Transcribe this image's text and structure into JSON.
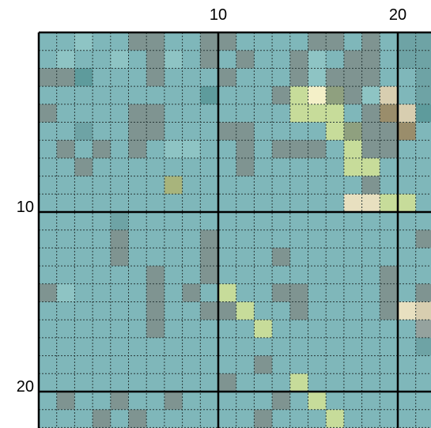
{
  "board": {
    "columns_visible": 22,
    "rows_visible": 22,
    "major_line_every": 10,
    "col_labels": [
      {
        "index": 10,
        "text": "10"
      },
      {
        "index": 20,
        "text": "20"
      }
    ],
    "row_labels": [
      {
        "index": 10,
        "text": "10"
      },
      {
        "index": 20,
        "text": "20"
      }
    ],
    "palette": {
      "a": "#7fb7ba",
      "b": "#6ea3a5",
      "c": "#8ec4c4",
      "d": "#5e9b9c",
      "e": "#7f9491",
      "f": "#95a29e",
      "g": "#c7dc9a",
      "h": "#e8e0c0",
      "i": "#a8b47c",
      "j": "#9a8d6b",
      "k": "#f4f0c8",
      "l": "#d8ceb0",
      "m": "#8fa07f"
    },
    "rows": [
      "aacaaeeaaeeaaaaeeaeabb",
      "acaacaecaeaeaaecaeeabb",
      "eedaaaeaaaeaaaeceeeaab",
      "aaaaaaaaadaaaegkmeclab",
      "eaaaaeeaaaaaaagggaejld",
      "aabaaeeaaaeeaaaagmeeja",
      "aeaeaeaccaaeaeeeageeaa",
      "aaeaaaaaaaaeaaaaaggaaa",
      "aaaaaaaiaaaaaaaaaaeaaa",
      "aaaaaaaaaaaaaaaaahhgga",
      "aaaabaaaaaaaaaaaaaaaaa",
      "aaaaeaaaaeaaaaaaaaaaae",
      "aaaaeaaaaeaaaeaaaaaaaa",
      "aaaaaaeaaeaaaaaaaaaeaa",
      "ecaaaaeaeagaaeeaaaaeae",
      "aaaaaaeaaeegaaeaaaaehl",
      "aaaaaaeaaaaagaaaaaaaaf",
      "aaaaaaaaaaaaaaaaaaaaab",
      "aaaaaaaaaaaaeaaaaaaaaa",
      "aaaaaaaaaaeaaagaaaaaaa",
      "aeaaeaaeaaaaaeagaaaaaa",
      "aaaeaeaaaaaaeaaagaaaaa"
    ]
  }
}
